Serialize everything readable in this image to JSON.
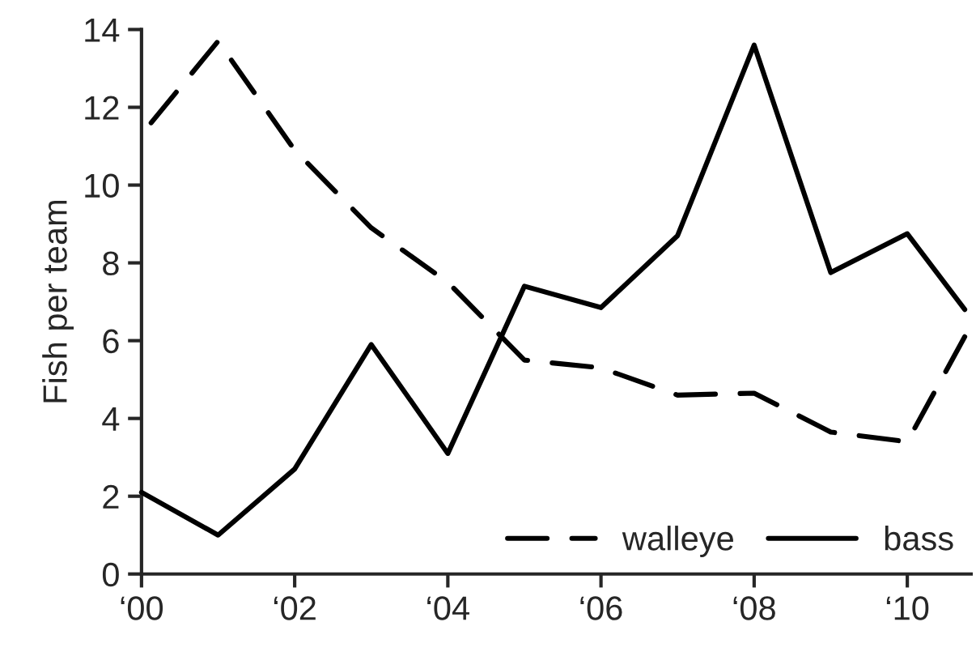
{
  "chart_data": {
    "type": "line",
    "ylabel": "Fish per team",
    "x": [
      "2000",
      "2001",
      "2002",
      "2003",
      "2004",
      "2005",
      "2006",
      "2007",
      "2008",
      "2009",
      "2010",
      "2010-10"
    ],
    "series": [
      {
        "name": "walleye",
        "color": "#000000",
        "line_style": "dashed",
        "values": [
          11.3,
          13.7,
          10.9,
          8.9,
          7.5,
          5.5,
          5.3,
          4.6,
          4.65,
          3.65,
          3.4,
          6.1
        ]
      },
      {
        "name": "bass",
        "color": "#000000",
        "line_style": "solid",
        "values": [
          2.1,
          1.0,
          2.7,
          5.9,
          3.1,
          7.4,
          6.85,
          8.7,
          13.6,
          7.75,
          8.75,
          6.8
        ]
      }
    ],
    "xlim": [
      "2000",
      "2010-11"
    ],
    "xticks": [
      {
        "value": "2000",
        "label": "‘00"
      },
      {
        "value": "2002",
        "label": "‘02"
      },
      {
        "value": "2004",
        "label": "‘04"
      },
      {
        "value": "2006",
        "label": "‘06"
      },
      {
        "value": "2008",
        "label": "‘08"
      },
      {
        "value": "2010",
        "label": "‘10"
      }
    ],
    "ylim": [
      0,
      14
    ],
    "yticks": [
      0,
      2,
      4,
      6,
      8,
      10,
      12,
      14
    ],
    "legend": "bottom right",
    "grid": false,
    "marker": "none"
  }
}
